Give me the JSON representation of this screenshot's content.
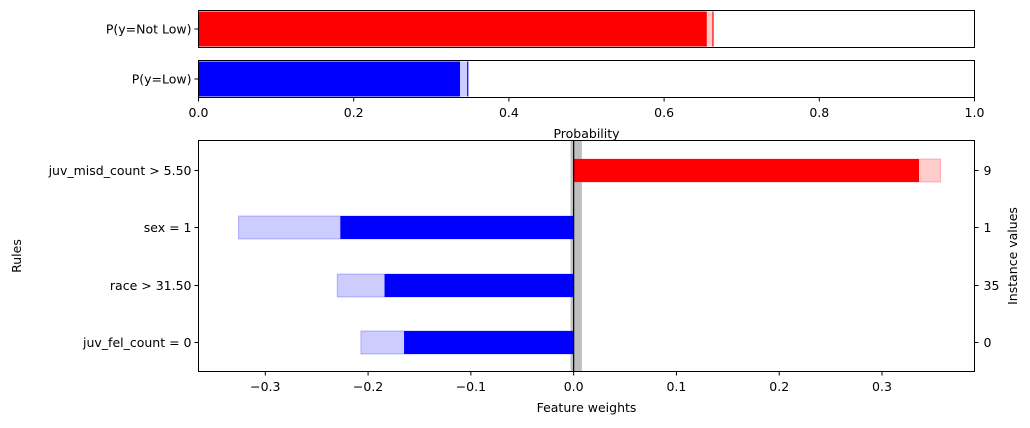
{
  "chart_data": [
    {
      "type": "bar",
      "orientation": "horizontal",
      "xlabel": "Probability",
      "xlim": [
        0,
        1
      ],
      "xticks": [
        0,
        0.2,
        0.4,
        0.6,
        0.8,
        1.0
      ],
      "xtick_labels": [
        "0.0",
        "0.2",
        "0.4",
        "0.6",
        "0.8",
        "1.0"
      ],
      "categories": [
        "P(y=Not Low)",
        "P(y=Low)"
      ],
      "series": [
        {
          "category": "P(y=Not Low)",
          "value": 0.655,
          "interval": [
            0.653,
            0.663
          ],
          "color": "#ff0000"
        },
        {
          "category": "P(y=Low)",
          "value": 0.337,
          "interval": [
            0.337,
            0.347
          ],
          "color": "#0000ff"
        }
      ]
    },
    {
      "type": "bar",
      "orientation": "horizontal",
      "xlabel": "Feature weights",
      "ylabel": "Rules",
      "y2label": "Instance values",
      "xlim": [
        -0.365,
        0.39
      ],
      "xticks": [
        -0.3,
        -0.2,
        -0.1,
        0.0,
        0.1,
        0.2,
        0.3
      ],
      "xtick_labels": [
        "−0.3",
        "−0.2",
        "−0.1",
        "0.0",
        "0.1",
        "0.2",
        "0.3"
      ],
      "categories": [
        "juv_misd_count > 5.50",
        "sex = 1",
        "race > 31.50",
        "juv_fel_count = 0"
      ],
      "instance_values": [
        "9",
        "1",
        "35",
        "0"
      ],
      "values": [
        0.336,
        -0.227,
        -0.184,
        -0.165
      ],
      "intervals": [
        [
          0,
          0.357
        ],
        [
          -0.326,
          0
        ],
        [
          -0.23,
          0
        ],
        [
          -0.207,
          0
        ]
      ],
      "baseline_band": [
        -0.003,
        0.008
      ],
      "positive_color": "#ff0000",
      "negative_color": "#0000ff"
    }
  ]
}
